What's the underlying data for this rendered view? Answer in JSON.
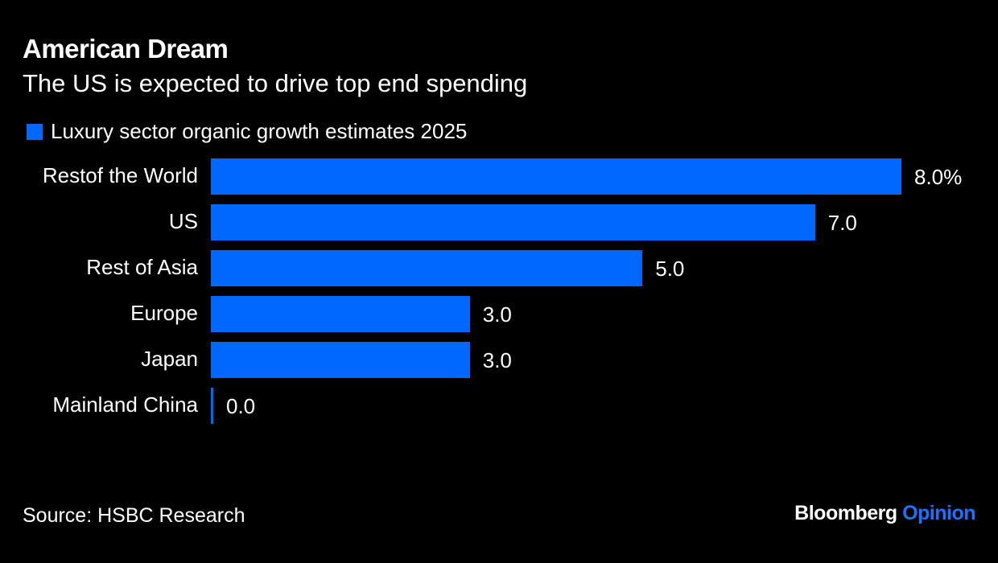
{
  "chart_data": {
    "type": "bar",
    "orientation": "horizontal",
    "title": "American Dream",
    "subtitle": "The US is expected to drive top end spending",
    "categories": [
      "Restof the World",
      "US",
      "Rest of Asia",
      "Europe",
      "Japan",
      "Mainland China"
    ],
    "series": [
      {
        "name": "Luxury sector organic growth estimates 2025",
        "values": [
          8.0,
          7.0,
          5.0,
          3.0,
          3.0,
          0.0
        ],
        "color": "#0068ff"
      }
    ],
    "value_labels": [
      "8.0%",
      "7.0",
      "5.0",
      "3.0",
      "3.0",
      "0.0"
    ],
    "xlim": [
      0,
      8
    ],
    "grid": false,
    "legend_placement": "top-left"
  },
  "footer": {
    "source": "Source: HSBC Research",
    "logo_main": "Bloomberg",
    "logo_accent": "Opinion",
    "logo_accent_color": "#1a73ff"
  },
  "colors": {
    "background": "#000000",
    "bar": "#0068ff"
  }
}
